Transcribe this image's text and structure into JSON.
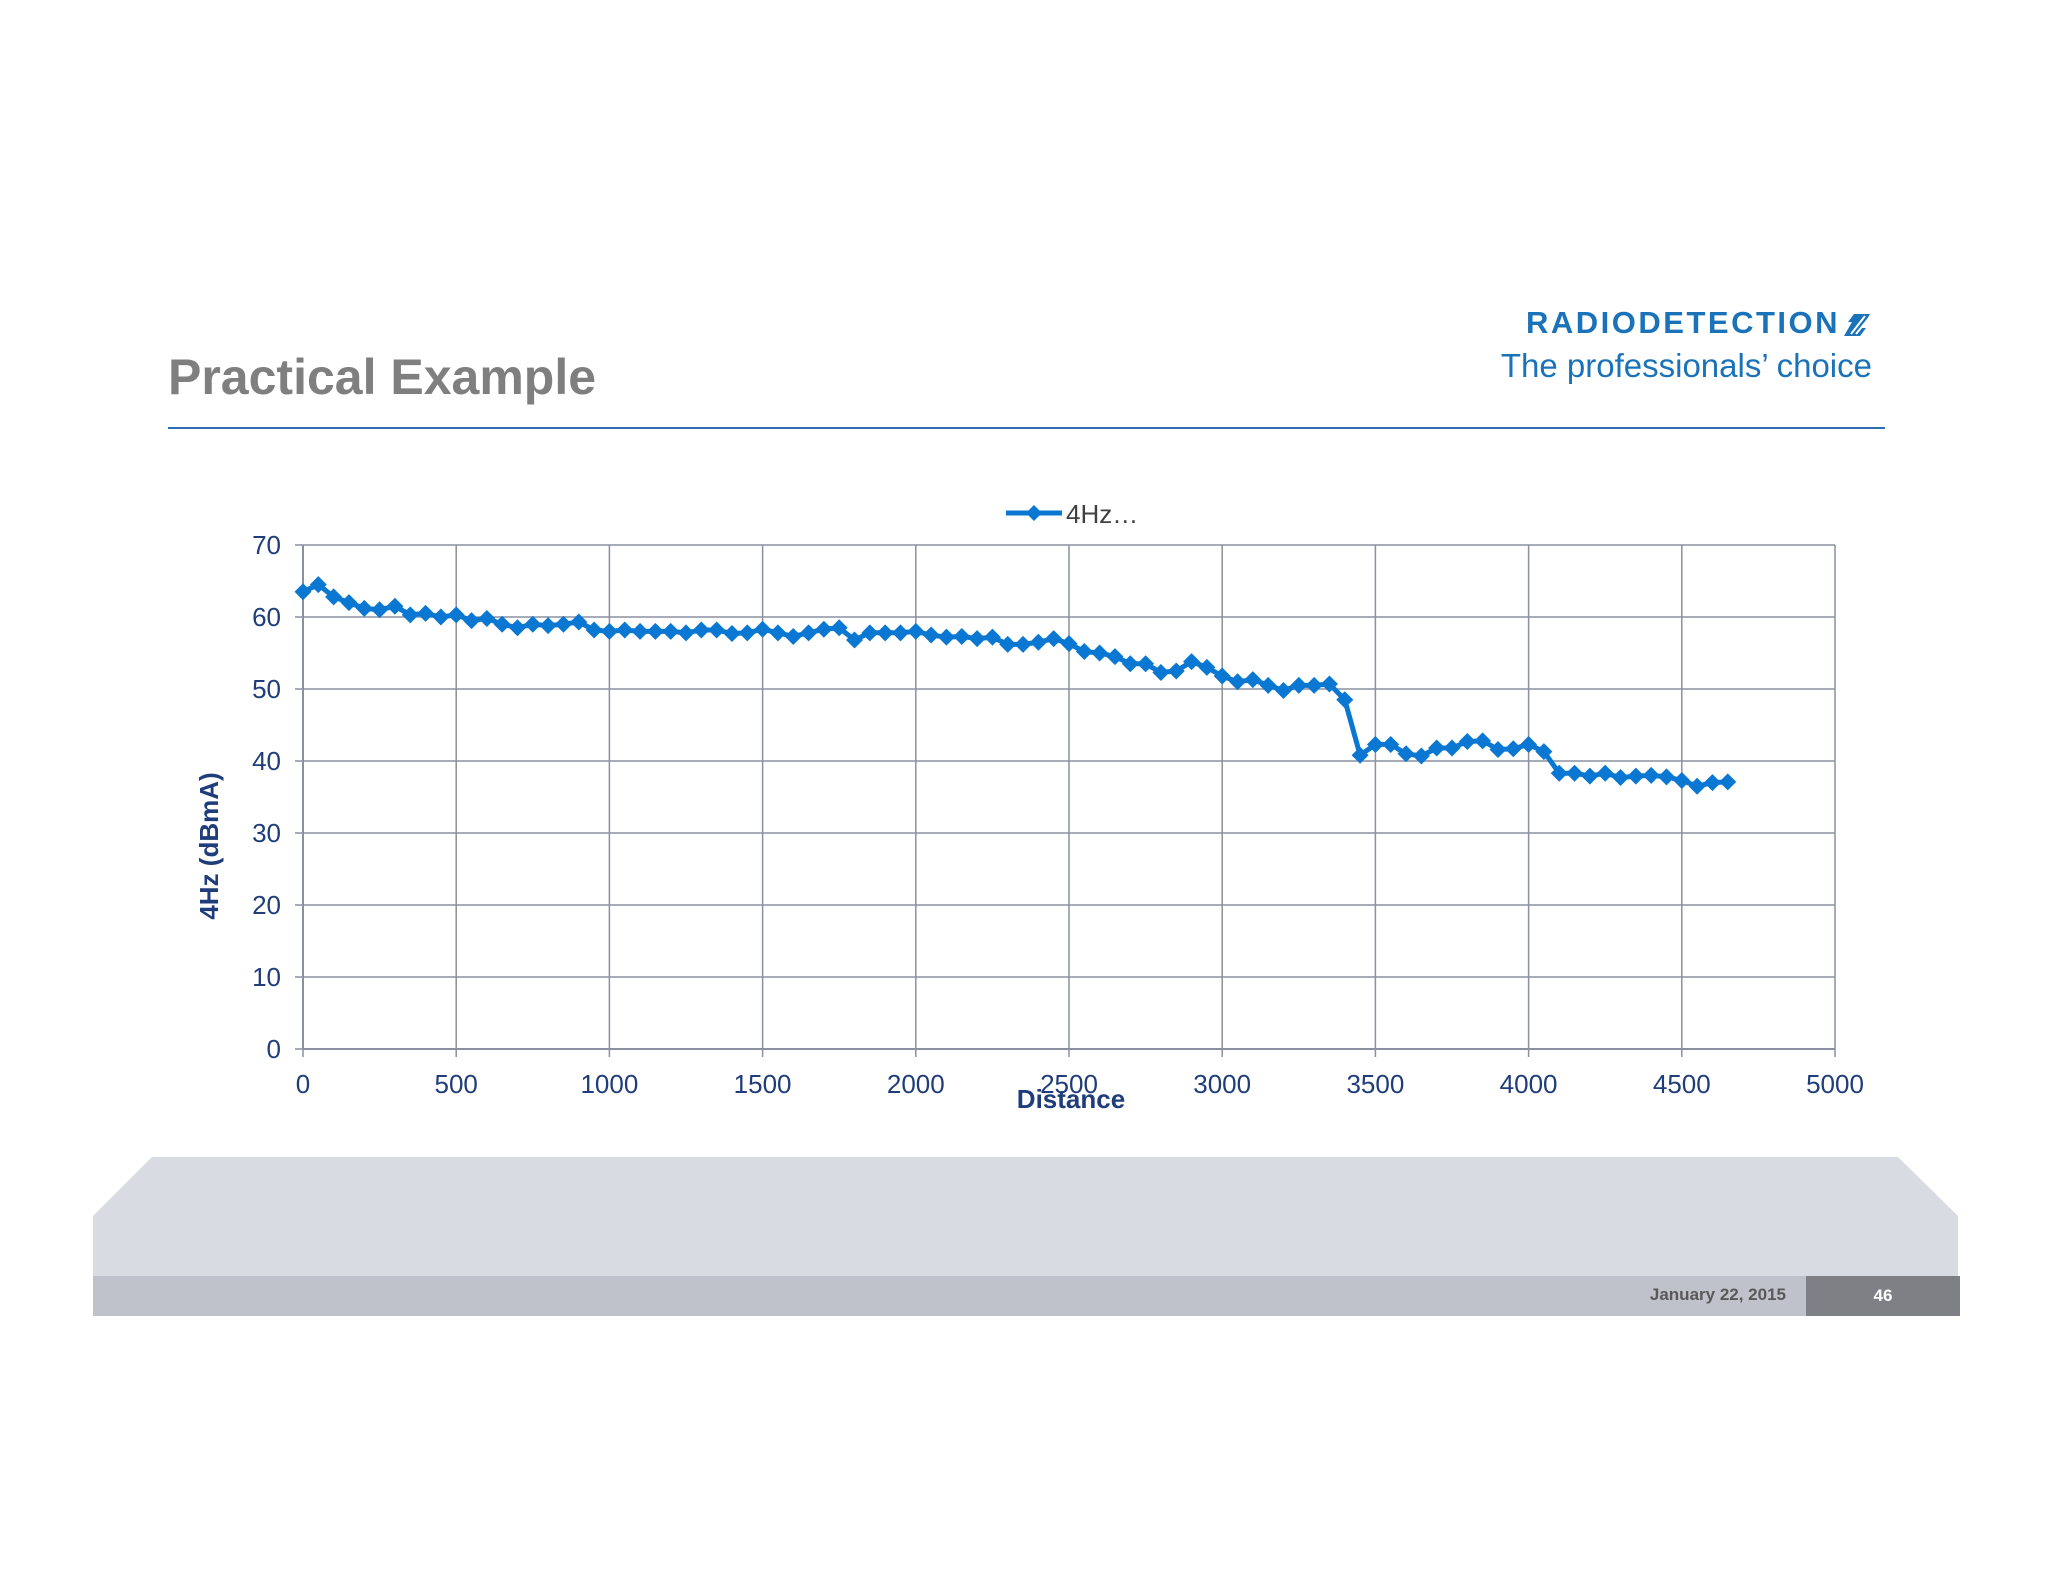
{
  "slide": {
    "title": "Practical Example",
    "brand_name": "RADIODETECTION",
    "brand_tagline": "The professionals’ choice",
    "footer_date": "January 22, 2015",
    "footer_page": "46"
  },
  "colors": {
    "title": "#7f7f7f",
    "brand": "#1a73b9",
    "rule": "#2e6db4",
    "series": "#0a78d2",
    "axis_title": "#1f3d7a",
    "grid": "#8c8fa0",
    "footer_band": "#d9dbe2",
    "footer_bar": "#c0c2cb",
    "footer_page_box": "#7f7f86"
  },
  "chart_data": {
    "type": "line",
    "title": "",
    "xlabel": "Distance",
    "ylabel": "4Hz (dBmA)",
    "xlim": [
      0,
      5000
    ],
    "ylim": [
      0,
      70
    ],
    "xticks": [
      0,
      500,
      1000,
      1500,
      2000,
      2500,
      3000,
      3500,
      4000,
      4500,
      5000
    ],
    "yticks": [
      0,
      10,
      20,
      30,
      40,
      50,
      60,
      70
    ],
    "grid": true,
    "legend": {
      "position": "top-center",
      "entries": [
        "4Hz…"
      ]
    },
    "series": [
      {
        "name": "4Hz…",
        "marker": "diamond",
        "x": [
          0,
          50,
          100,
          150,
          200,
          250,
          300,
          350,
          400,
          450,
          500,
          550,
          600,
          650,
          700,
          750,
          800,
          850,
          900,
          950,
          1000,
          1050,
          1100,
          1150,
          1200,
          1250,
          1300,
          1350,
          1400,
          1450,
          1500,
          1550,
          1600,
          1650,
          1700,
          1750,
          1800,
          1850,
          1900,
          1950,
          2000,
          2050,
          2100,
          2150,
          2200,
          2250,
          2300,
          2350,
          2400,
          2450,
          2500,
          2550,
          2600,
          2650,
          2700,
          2750,
          2800,
          2850,
          2900,
          2950,
          3000,
          3050,
          3100,
          3150,
          3200,
          3250,
          3300,
          3350,
          3400,
          3450,
          3500,
          3550,
          3600,
          3650,
          3700,
          3750,
          3800,
          3850,
          3900,
          3950,
          4000,
          4050,
          4100,
          4150,
          4200,
          4250,
          4300,
          4350,
          4400,
          4450,
          4500,
          4550,
          4600,
          4650
        ],
        "y": [
          63.5,
          64.5,
          62.8,
          62,
          61.2,
          61,
          61.5,
          60.3,
          60.5,
          60,
          60.3,
          59.5,
          59.8,
          59,
          58.5,
          59,
          58.8,
          59,
          59.3,
          58.2,
          58,
          58.2,
          58,
          58,
          58,
          57.8,
          58.2,
          58.2,
          57.7,
          57.8,
          58.3,
          57.8,
          57.3,
          57.8,
          58.3,
          58.5,
          56.8,
          57.8,
          57.8,
          57.8,
          58,
          57.5,
          57.2,
          57.3,
          57,
          57.2,
          56.2,
          56.2,
          56.5,
          57,
          56.3,
          55.2,
          55,
          54.5,
          53.5,
          53.5,
          52.3,
          52.5,
          53.8,
          53,
          51.8,
          51,
          51.3,
          50.5,
          49.8,
          50.5,
          50.5,
          50.7,
          48.5,
          40.8,
          42.3,
          42.3,
          41,
          40.7,
          41.8,
          41.8,
          42.7,
          42.8,
          41.6,
          41.7,
          42.3,
          41.3,
          38.3,
          38.3,
          37.9,
          38.3,
          37.7,
          37.9,
          38,
          37.8,
          37.3,
          36.5,
          37,
          37.1
        ]
      }
    ]
  }
}
